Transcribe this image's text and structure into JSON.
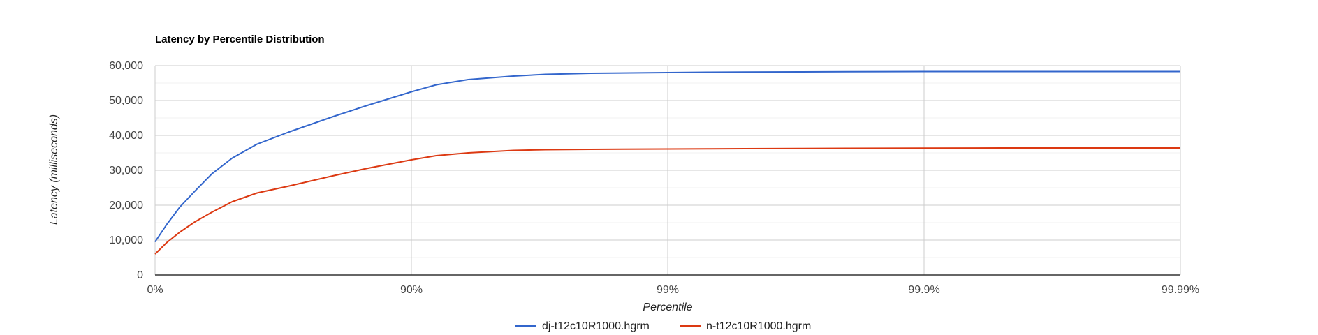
{
  "chart_data": {
    "type": "line",
    "title": "Latency by Percentile Distribution",
    "xlabel": "Percentile",
    "ylabel": "Latency (milliseconds)",
    "x_scale": "percentile-log (1/(1-p))",
    "xlim": [
      0,
      99.99
    ],
    "ylim": [
      0,
      60000
    ],
    "x_ticks": [
      {
        "value": 0,
        "label": "0%"
      },
      {
        "value": 90,
        "label": "90%"
      },
      {
        "value": 99,
        "label": "99%"
      },
      {
        "value": 99.9,
        "label": "99.9%"
      },
      {
        "value": 99.99,
        "label": "99.99%"
      }
    ],
    "y_ticks": [
      {
        "value": 0,
        "label": "0"
      },
      {
        "value": 10000,
        "label": "10,000"
      },
      {
        "value": 20000,
        "label": "20,000"
      },
      {
        "value": 30000,
        "label": "30,000"
      },
      {
        "value": 40000,
        "label": "40,000"
      },
      {
        "value": 50000,
        "label": "50,000"
      },
      {
        "value": 60000,
        "label": "60,000"
      }
    ],
    "grid": true,
    "legend_position": "bottom",
    "x": [
      0,
      10,
      20,
      30,
      40,
      50,
      60,
      70,
      80,
      85,
      90,
      92,
      94,
      96,
      97,
      98,
      99,
      99.3,
      99.5,
      99.7,
      99.8,
      99.9,
      99.95,
      99.99
    ],
    "series": [
      {
        "name": "dj-t12c10R1000.hgrm",
        "color": "#3366cc",
        "values": [
          9500,
          14500,
          19500,
          24000,
          29000,
          33500,
          37500,
          41000,
          45500,
          48500,
          52500,
          54500,
          56000,
          57000,
          57500,
          57800,
          58000,
          58100,
          58150,
          58200,
          58250,
          58300,
          58300,
          58300
        ]
      },
      {
        "name": "n-t12c10R1000.hgrm",
        "color": "#dc3912",
        "values": [
          6000,
          9300,
          12300,
          15200,
          18000,
          21000,
          23500,
          25500,
          28500,
          30500,
          33000,
          34200,
          35000,
          35700,
          35900,
          36000,
          36100,
          36150,
          36200,
          36250,
          36300,
          36350,
          36400,
          36400
        ]
      }
    ]
  }
}
